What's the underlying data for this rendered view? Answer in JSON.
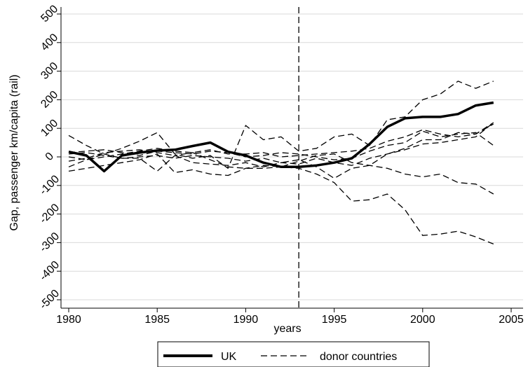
{
  "chart_data": {
    "type": "line",
    "title": "",
    "xlabel": "years",
    "ylabel": "Gap, passenger km/capita (rail)",
    "xlim": [
      1980,
      2005
    ],
    "ylim": [
      -500,
      500
    ],
    "xticks": [
      "1980",
      "1985",
      "1990",
      "1995",
      "2000",
      "2005"
    ],
    "yticks": [
      "-500",
      "-400",
      "-300",
      "-200",
      "-100",
      "0",
      "100",
      "200",
      "300",
      "400",
      "500"
    ],
    "grid": true,
    "treatment_line_x": 1993,
    "legend_position": "bottom",
    "x": [
      1980,
      1981,
      1982,
      1983,
      1984,
      1985,
      1986,
      1987,
      1988,
      1989,
      1990,
      1991,
      1992,
      1993,
      1994,
      1995,
      1996,
      1997,
      1998,
      1999,
      2000,
      2001,
      2002,
      2003,
      2004
    ],
    "series": [
      {
        "name": "UK",
        "style": "solid",
        "color": "#000000",
        "values": [
          18,
          5,
          -50,
          5,
          15,
          22,
          25,
          38,
          50,
          18,
          5,
          -20,
          -35,
          -35,
          -30,
          -20,
          -5,
          45,
          105,
          135,
          140,
          140,
          150,
          180,
          190
        ]
      },
      {
        "name": "donor countries",
        "style": "dashed",
        "color": "#000000",
        "values": [
          75,
          40,
          10,
          -5,
          -5,
          -50,
          5,
          15,
          -10,
          -35,
          -40,
          -40,
          -35,
          -40,
          -60,
          -90,
          -155,
          -150,
          -130,
          -185,
          -275,
          -270,
          -260,
          -280,
          -305
        ]
      },
      {
        "style": "dashed",
        "color": "#000000",
        "values": [
          -50,
          -40,
          -30,
          -20,
          -10,
          10,
          -55,
          -45,
          -60,
          -65,
          -40,
          -30,
          -35,
          -15,
          5,
          10,
          -20,
          -30,
          -40,
          -60,
          -70,
          -60,
          -90,
          -95,
          -130
        ]
      },
      {
        "style": "dashed",
        "color": "#000000",
        "values": [
          -35,
          -10,
          10,
          30,
          55,
          85,
          10,
          -5,
          5,
          -40,
          110,
          60,
          70,
          20,
          30,
          70,
          80,
          40,
          130,
          140,
          200,
          220,
          265,
          240,
          265
        ]
      },
      {
        "style": "dashed",
        "color": "#000000",
        "values": [
          15,
          20,
          25,
          15,
          5,
          20,
          15,
          10,
          20,
          15,
          0,
          5,
          15,
          10,
          0,
          -10,
          -5,
          20,
          40,
          50,
          90,
          70,
          80,
          85,
          40
        ]
      },
      {
        "style": "dashed",
        "color": "#000000",
        "values": [
          0,
          -10,
          0,
          10,
          20,
          30,
          20,
          15,
          25,
          10,
          10,
          15,
          0,
          5,
          10,
          15,
          20,
          30,
          55,
          70,
          95,
          80,
          70,
          80,
          120
        ]
      },
      {
        "style": "dashed",
        "color": "#000000",
        "values": [
          10,
          15,
          5,
          -5,
          0,
          5,
          -5,
          5,
          0,
          -5,
          -15,
          -5,
          -20,
          -10,
          -35,
          -75,
          -40,
          -30,
          10,
          30,
          60,
          60,
          85,
          80,
          115
        ]
      },
      {
        "style": "dashed",
        "color": "#000000",
        "values": [
          -15,
          -5,
          15,
          20,
          25,
          15,
          5,
          -20,
          -25,
          -30,
          -20,
          -35,
          -20,
          -25,
          -5,
          -20,
          -30,
          -5,
          10,
          25,
          45,
          50,
          60,
          70,
          120
        ]
      }
    ],
    "legend": {
      "items": [
        "UK",
        "donor countries"
      ]
    }
  }
}
